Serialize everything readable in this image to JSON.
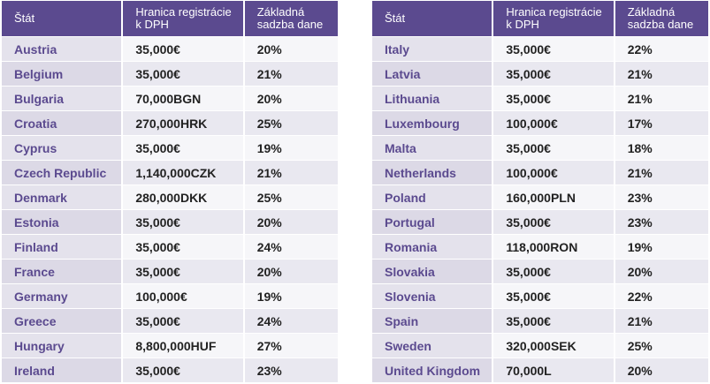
{
  "tables": [
    {
      "headers": [
        "Štát",
        "Hranica registrácie k DPH",
        "Základná sadzba dane"
      ],
      "rows": [
        [
          "Austria",
          "35,000€",
          "20%"
        ],
        [
          "Belgium",
          "35,000€",
          "21%"
        ],
        [
          "Bulgaria",
          "70,000BGN",
          "20%"
        ],
        [
          "Croatia",
          "270,000HRK",
          "25%"
        ],
        [
          "Cyprus",
          "35,000€",
          "19%"
        ],
        [
          "Czech Republic",
          "1,140,000CZK",
          "21%"
        ],
        [
          "Denmark",
          "280,000DKK",
          "25%"
        ],
        [
          "Estonia",
          "35,000€",
          "20%"
        ],
        [
          "Finland",
          "35,000€",
          "24%"
        ],
        [
          "France",
          "35,000€",
          "20%"
        ],
        [
          "Germany",
          "100,000€",
          "19%"
        ],
        [
          "Greece",
          "35,000€",
          "24%"
        ],
        [
          "Hungary",
          "8,800,000HUF",
          "27%"
        ],
        [
          "Ireland",
          "35,000€",
          "23%"
        ]
      ]
    },
    {
      "headers": [
        "Štát",
        "Hranica registrácie k DPH",
        "Základná sadzba dane"
      ],
      "rows": [
        [
          "Italy",
          "35,000€",
          "22%"
        ],
        [
          "Latvia",
          "35,000€",
          "21%"
        ],
        [
          "Lithuania",
          "35,000€",
          "21%"
        ],
        [
          "Luxembourg",
          "100,000€",
          "17%"
        ],
        [
          "Malta",
          "35,000€",
          "18%"
        ],
        [
          "Netherlands",
          "100,000€",
          "21%"
        ],
        [
          "Poland",
          "160,000PLN",
          "23%"
        ],
        [
          "Portugal",
          "35,000€",
          "23%"
        ],
        [
          "Romania",
          "118,000RON",
          "19%"
        ],
        [
          "Slovakia",
          "35,000€",
          "20%"
        ],
        [
          "Slovenia",
          "35,000€",
          "22%"
        ],
        [
          "Spain",
          "35,000€",
          "21%"
        ],
        [
          "Sweden",
          "320,000SEK",
          "25%"
        ],
        [
          "United Kingdom",
          "70,000L",
          "20%"
        ]
      ]
    }
  ]
}
